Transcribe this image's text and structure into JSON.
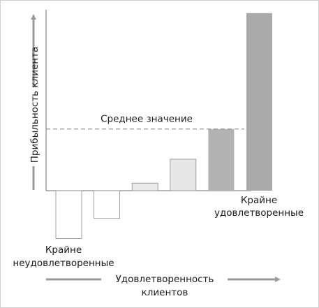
{
  "chart_data": {
    "type": "bar",
    "ylabel": "Прибыльность клиента",
    "xlabel_lines": [
      "Удовлетворенность",
      "клиентов"
    ],
    "mean_label": "Среднее значение",
    "mean_value": 2.45,
    "ylim": [
      -1.9,
      7.1
    ],
    "values": [
      -1.9,
      -1.1,
      0.3,
      1.25,
      2.45,
      7.05
    ],
    "categories": [
      "Крайне неудовлетворенные",
      "",
      "",
      "",
      "",
      "Крайне удовлетворенные"
    ],
    "left_end_label_lines": [
      "Крайне",
      "неудовлетворенные"
    ],
    "right_end_label_lines": [
      "Крайне",
      "удовлетворенные"
    ],
    "bar_colors": [
      "#ffffff",
      "#ffffff",
      "#eaeaea",
      "#e6e6e6",
      "#b3b3b3",
      "#aaaaaa"
    ],
    "grid": false
  },
  "colors": {
    "axis": "#6f6f6f",
    "arrow": "#9a9a9a",
    "bar_stroke": "#8a8a8a",
    "mean_line": "#7a7a7a"
  }
}
